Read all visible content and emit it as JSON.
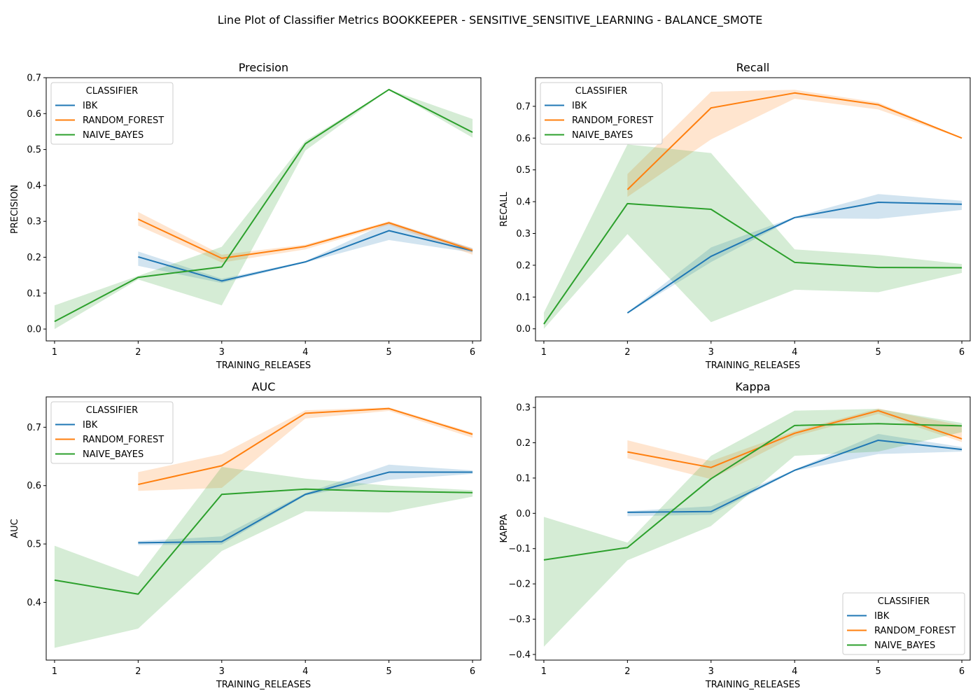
{
  "figure": {
    "title": "Line Plot of Classifier Metrics BOOKKEEPER - SENSITIVE_SENSITIVE_LEARNING - BALANCE_SMOTE"
  },
  "legend": {
    "title": "CLASSIFIER",
    "entries": [
      "IBK",
      "RANDOM_FOREST",
      "NAIVE_BAYES"
    ]
  },
  "colors": {
    "IBK": "#1f77b4",
    "RANDOM_FOREST": "#ff7f0e",
    "NAIVE_BAYES": "#2ca02c"
  },
  "chart_data": [
    {
      "type": "line",
      "title": "Precision",
      "xlabel": "TRAINING_RELEASES",
      "ylabel": "PRECISION",
      "xlim": [
        0.9,
        6.1
      ],
      "ylim": [
        -0.033,
        0.7
      ],
      "xticks": [
        1,
        2,
        3,
        4,
        5,
        6
      ],
      "yticks": [
        0.0,
        0.1,
        0.2,
        0.3,
        0.4,
        0.5,
        0.6,
        0.7
      ],
      "ytick_labels": [
        "0.0",
        "0.1",
        "0.2",
        "0.3",
        "0.4",
        "0.5",
        "0.6",
        "0.7"
      ],
      "legend_position": "upper-left",
      "series": [
        {
          "name": "IBK",
          "x": [
            2,
            3,
            4,
            5,
            6
          ],
          "y": [
            0.201,
            0.134,
            0.187,
            0.274,
            0.218
          ],
          "lower": [
            0.176,
            0.128,
            0.185,
            0.248,
            0.213
          ],
          "upper": [
            0.216,
            0.14,
            0.189,
            0.298,
            0.225
          ]
        },
        {
          "name": "RANDOM_FOREST",
          "x": [
            2,
            3,
            4,
            5,
            6
          ],
          "y": [
            0.306,
            0.197,
            0.23,
            0.296,
            0.219
          ],
          "lower": [
            0.288,
            0.185,
            0.222,
            0.29,
            0.207
          ],
          "upper": [
            0.326,
            0.207,
            0.235,
            0.3,
            0.225
          ]
        },
        {
          "name": "NAIVE_BAYES",
          "x": [
            1,
            2,
            3,
            4,
            5,
            6
          ],
          "y": [
            0.021,
            0.144,
            0.173,
            0.516,
            0.667,
            0.548
          ],
          "lower": [
            0.0,
            0.138,
            0.066,
            0.497,
            0.667,
            0.533
          ],
          "upper": [
            0.066,
            0.148,
            0.229,
            0.524,
            0.667,
            0.585
          ]
        }
      ]
    },
    {
      "type": "line",
      "title": "Recall",
      "xlabel": "TRAINING_RELEASES",
      "ylabel": "RECALL",
      "xlim": [
        0.9,
        6.1
      ],
      "ylim": [
        -0.038,
        0.79
      ],
      "xticks": [
        1,
        2,
        3,
        4,
        5,
        6
      ],
      "yticks": [
        0.0,
        0.1,
        0.2,
        0.3,
        0.4,
        0.5,
        0.6,
        0.7
      ],
      "ytick_labels": [
        "0.0",
        "0.1",
        "0.2",
        "0.3",
        "0.4",
        "0.5",
        "0.6",
        "0.7"
      ],
      "legend_position": "upper-left",
      "series": [
        {
          "name": "IBK",
          "x": [
            2,
            3,
            4,
            5,
            6
          ],
          "y": [
            0.05,
            0.228,
            0.35,
            0.398,
            0.392
          ],
          "lower": [
            0.048,
            0.21,
            0.348,
            0.346,
            0.374
          ],
          "upper": [
            0.052,
            0.256,
            0.352,
            0.424,
            0.403
          ]
        },
        {
          "name": "RANDOM_FOREST",
          "x": [
            2,
            3,
            4,
            5,
            6
          ],
          "y": [
            0.438,
            0.695,
            0.742,
            0.705,
            0.6
          ],
          "lower": [
            0.415,
            0.596,
            0.724,
            0.69,
            0.599
          ],
          "upper": [
            0.487,
            0.746,
            0.752,
            0.712,
            0.601
          ]
        },
        {
          "name": "NAIVE_BAYES",
          "x": [
            1,
            2,
            3,
            4,
            5,
            6
          ],
          "y": [
            0.015,
            0.394,
            0.376,
            0.209,
            0.193,
            0.192
          ],
          "lower": [
            0.0,
            0.298,
            0.021,
            0.123,
            0.115,
            0.176
          ],
          "upper": [
            0.051,
            0.58,
            0.553,
            0.25,
            0.232,
            0.204
          ]
        }
      ]
    },
    {
      "type": "line",
      "title": "AUC",
      "xlabel": "TRAINING_RELEASES",
      "ylabel": "AUC",
      "xlim": [
        0.9,
        6.1
      ],
      "ylim": [
        0.301,
        0.752
      ],
      "xticks": [
        1,
        2,
        3,
        4,
        5,
        6
      ],
      "yticks": [
        0.4,
        0.5,
        0.6,
        0.7
      ],
      "ytick_labels": [
        "0.4",
        "0.5",
        "0.6",
        "0.7"
      ],
      "legend_position": "upper-left",
      "series": [
        {
          "name": "IBK",
          "x": [
            2,
            3,
            4,
            5,
            6
          ],
          "y": [
            0.502,
            0.504,
            0.585,
            0.623,
            0.623
          ],
          "lower": [
            0.498,
            0.499,
            0.583,
            0.61,
            0.62
          ],
          "upper": [
            0.505,
            0.513,
            0.587,
            0.636,
            0.626
          ]
        },
        {
          "name": "RANDOM_FOREST",
          "x": [
            2,
            3,
            4,
            5,
            6
          ],
          "y": [
            0.602,
            0.634,
            0.724,
            0.732,
            0.688
          ],
          "lower": [
            0.591,
            0.596,
            0.715,
            0.728,
            0.682
          ],
          "upper": [
            0.623,
            0.654,
            0.729,
            0.734,
            0.691
          ]
        },
        {
          "name": "NAIVE_BAYES",
          "x": [
            1,
            2,
            3,
            4,
            5,
            6
          ],
          "y": [
            0.438,
            0.414,
            0.585,
            0.594,
            0.59,
            0.588
          ],
          "lower": [
            0.322,
            0.355,
            0.488,
            0.556,
            0.554,
            0.581
          ],
          "upper": [
            0.497,
            0.444,
            0.632,
            0.612,
            0.6,
            0.592
          ]
        }
      ]
    },
    {
      "type": "line",
      "title": "Kappa",
      "xlabel": "TRAINING_RELEASES",
      "ylabel": "KAPPA",
      "xlim": [
        0.9,
        6.1
      ],
      "ylim": [
        -0.416,
        0.33
      ],
      "xticks": [
        1,
        2,
        3,
        4,
        5,
        6
      ],
      "yticks": [
        -0.4,
        -0.3,
        -0.2,
        -0.1,
        0.0,
        0.1,
        0.2,
        0.3
      ],
      "ytick_labels": [
        "−0.4",
        "−0.3",
        "−0.2",
        "−0.1",
        "0.0",
        "0.1",
        "0.2",
        "0.3"
      ],
      "legend_position": "lower-right",
      "series": [
        {
          "name": "IBK",
          "x": [
            2,
            3,
            4,
            5,
            6
          ],
          "y": [
            0.003,
            0.005,
            0.122,
            0.207,
            0.181
          ],
          "lower": [
            -0.008,
            -0.004,
            0.12,
            0.168,
            0.175
          ],
          "upper": [
            0.006,
            0.02,
            0.124,
            0.225,
            0.188
          ]
        },
        {
          "name": "RANDOM_FOREST",
          "x": [
            2,
            3,
            4,
            5,
            6
          ],
          "y": [
            0.174,
            0.13,
            0.227,
            0.291,
            0.211
          ],
          "lower": [
            0.156,
            0.097,
            0.218,
            0.282,
            0.202
          ],
          "upper": [
            0.207,
            0.148,
            0.233,
            0.297,
            0.249
          ]
        },
        {
          "name": "NAIVE_BAYES",
          "x": [
            1,
            2,
            3,
            4,
            5,
            6
          ],
          "y": [
            -0.132,
            -0.097,
            0.098,
            0.249,
            0.254,
            0.248
          ],
          "lower": [
            -0.378,
            -0.133,
            -0.036,
            0.163,
            0.175,
            0.23
          ],
          "upper": [
            -0.01,
            -0.083,
            0.163,
            0.291,
            0.296,
            0.256
          ]
        }
      ]
    }
  ]
}
